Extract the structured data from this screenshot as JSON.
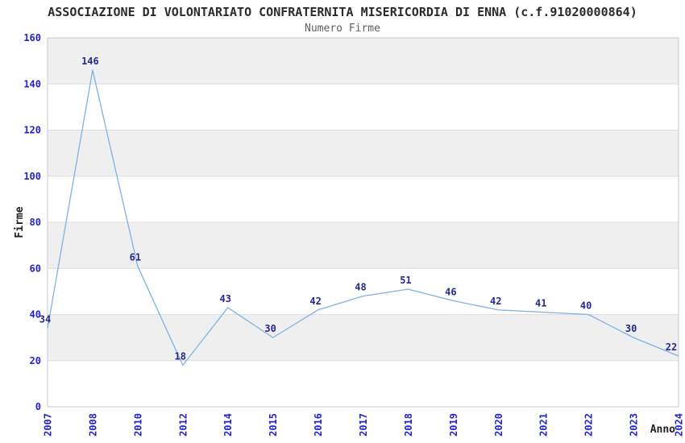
{
  "header": {
    "title": "ASSOCIAZIONE DI VOLONTARIATO CONFRATERNITA MISERICORDIA DI ENNA (c.f.91020000864)",
    "subtitle": "Numero Firme"
  },
  "chart_data": {
    "type": "line",
    "title": "ASSOCIAZIONE DI VOLONTARIATO CONFRATERNITA MISERICORDIA DI ENNA (c.f.91020000864)",
    "subtitle": "Numero Firme",
    "xlabel": "Anno",
    "ylabel": "Firme",
    "categories": [
      "2007",
      "2008",
      "2010",
      "2012",
      "2014",
      "2015",
      "2016",
      "2017",
      "2018",
      "2019",
      "2020",
      "2021",
      "2022",
      "2023",
      "2024"
    ],
    "values": [
      34,
      146,
      61,
      18,
      43,
      30,
      42,
      48,
      51,
      46,
      42,
      41,
      40,
      30,
      22
    ],
    "ylim": [
      0,
      160
    ],
    "ytick_step": 20,
    "yticks": [
      0,
      20,
      40,
      60,
      80,
      100,
      120,
      140,
      160
    ],
    "grid": "horizontal",
    "legend_position": "none",
    "point_labels_visible": true,
    "colors": {
      "line": "#7fb1e3",
      "tick_label": "#2323cc",
      "data_label": "#28288c",
      "band": "#efefef",
      "gridline": "#dedede",
      "plot_border": "#c9c9c9",
      "title": "#2b2b2b",
      "subtitle": "#606060",
      "axis_title": "#222222",
      "background": "#ffffff"
    }
  }
}
